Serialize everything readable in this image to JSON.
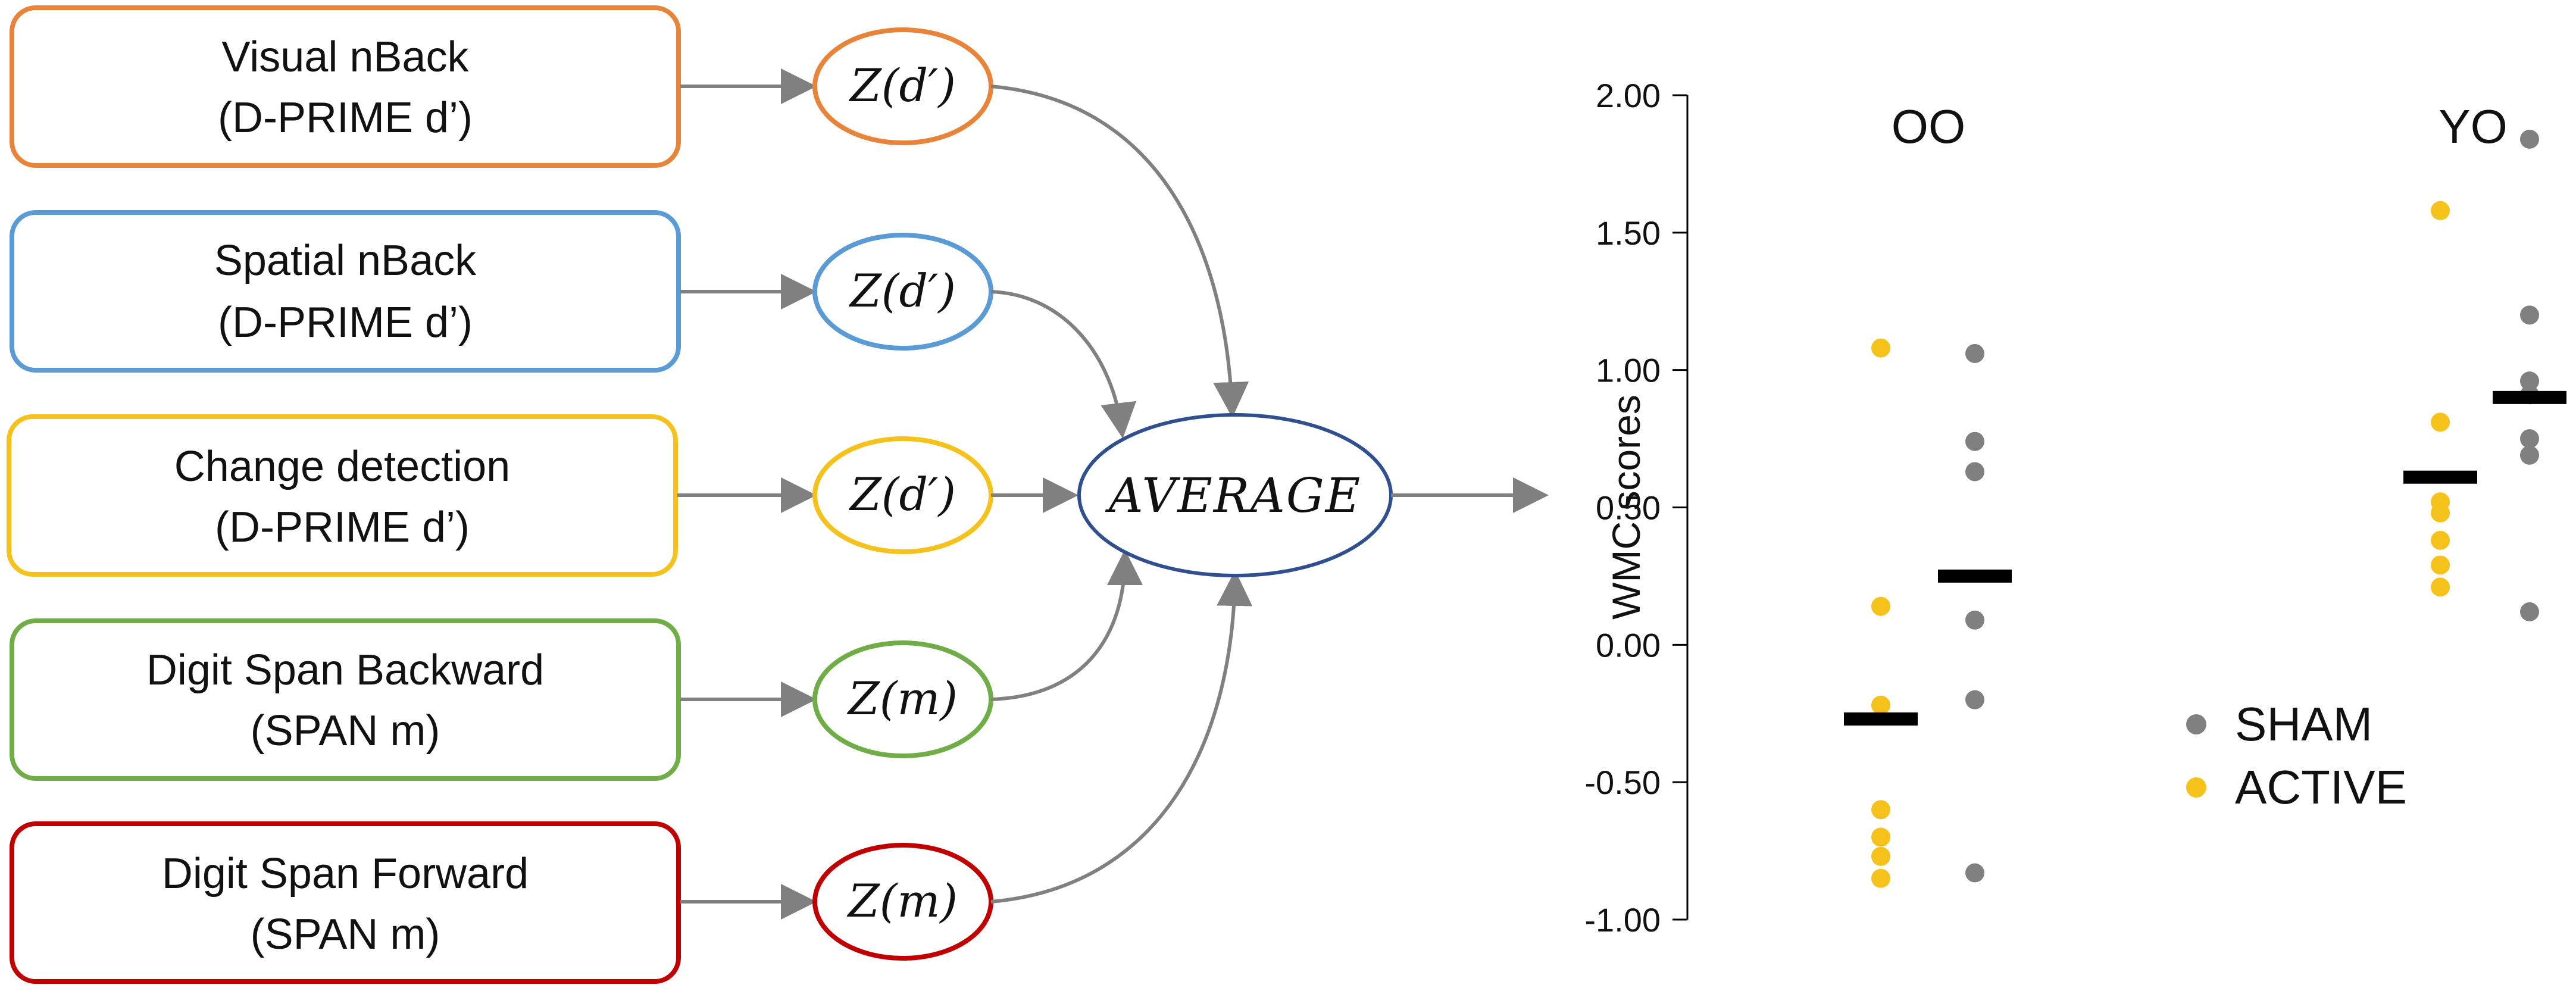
{
  "flow": {
    "tasks": [
      {
        "line1": "Visual nBack",
        "line2": "(D-PRIME d’)",
        "z": "Z(d′)",
        "color": "#E8843A"
      },
      {
        "line1": "Spatial nBack",
        "line2": "(D-PRIME d’)",
        "z": "Z(d′)",
        "color": "#5B9BD5"
      },
      {
        "line1": "Change detection",
        "line2": "(D-PRIME d’)",
        "z": "Z(d′)",
        "color": "#F5C21B"
      },
      {
        "line1": "Digit Span Backward",
        "line2": "(SPAN m)",
        "z": "Z(m)",
        "color": "#70AD47"
      },
      {
        "line1": "Digit Span Forward",
        "line2": "(SPAN m)",
        "z": "Z(m)",
        "color": "#C00000"
      }
    ],
    "average": {
      "label": "AVERAGE",
      "color": "#2F4F8F"
    },
    "arrow_color": "#808080"
  },
  "chart_data": {
    "type": "scatter",
    "ylabel": "WMC scores",
    "ylim": [
      -1.0,
      2.0
    ],
    "yticks": [
      "2.00",
      "1.50",
      "1.00",
      "0.50",
      "0.00",
      "-0.50",
      "-1.00"
    ],
    "ytick_values": [
      2.0,
      1.5,
      1.0,
      0.5,
      0.0,
      -0.5,
      -1.0
    ],
    "groups": [
      "OO",
      "YO"
    ],
    "legend": {
      "position": "right-center"
    },
    "series": [
      {
        "name": "SHAM",
        "color": "#808080",
        "points": {
          "OO": [
            1.06,
            0.74,
            0.63,
            0.09,
            -0.2,
            -0.83
          ],
          "YO": [
            1.84,
            1.2,
            0.96,
            0.91,
            0.75,
            0.69,
            0.12
          ]
        },
        "mean": {
          "OO": 0.25,
          "YO": 0.9
        }
      },
      {
        "name": "ACTIVE",
        "color": "#F5C21B",
        "points": {
          "OO": [
            1.08,
            0.14,
            -0.22,
            -0.6,
            -0.7,
            -0.77,
            -0.85
          ],
          "YO": [
            1.58,
            0.81,
            0.52,
            0.48,
            0.38,
            0.29,
            0.21
          ]
        },
        "mean": {
          "OO": -0.27,
          "YO": 0.61
        }
      }
    ],
    "mean_color": "#000000"
  }
}
